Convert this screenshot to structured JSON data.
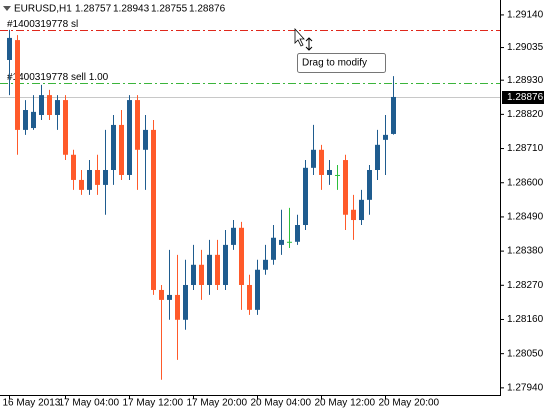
{
  "chart_data": {
    "type": "candlestick",
    "symbol": "EURUSD,H1",
    "categories": [
      "16 May 2013",
      null,
      null,
      null,
      null,
      null,
      null,
      "17 May 04:00",
      null,
      null,
      null,
      null,
      null,
      null,
      null,
      "17 May 12:00",
      null,
      null,
      null,
      null,
      null,
      null,
      null,
      "17 May 20:00",
      null,
      null,
      null,
      null,
      null,
      null,
      null,
      "20 May 04:00",
      null,
      null,
      null,
      null,
      null,
      null,
      null,
      "20 May 12:00",
      null,
      null,
      null,
      null,
      null,
      null,
      null,
      "20 May 20:00",
      null
    ],
    "open": [
      1.28995,
      1.29059,
      1.2877,
      1.28776,
      1.28818,
      1.28882,
      1.28818,
      1.28866,
      1.2869,
      1.28609,
      1.28577,
      1.28641,
      1.28593,
      1.28641,
      1.28786,
      1.28625,
      1.28866,
      1.28706,
      1.2877,
      1.28255,
      1.28223,
      1.28239,
      1.28159,
      1.28271,
      1.28336,
      1.28271,
      1.28368,
      1.28271,
      1.284,
      1.28455,
      1.28271,
      1.28191,
      1.2832,
      1.28352,
      1.284,
      1.2841,
      1.2841,
      1.28464,
      1.28648,
      1.28706,
      1.28625,
      1.28625,
      1.28673,
      1.28513,
      1.2848,
      1.28545,
      1.28641,
      1.28738,
      1.28757
    ],
    "high": [
      1.29092,
      1.29075,
      1.28866,
      1.28882,
      1.28915,
      1.28899,
      1.28882,
      1.28882,
      1.28706,
      1.28641,
      1.28673,
      1.2869,
      1.2877,
      1.28818,
      1.28834,
      1.28882,
      1.28882,
      1.28818,
      1.28802,
      1.28271,
      1.28384,
      1.28368,
      1.28352,
      1.284,
      1.28384,
      1.28416,
      1.28416,
      1.28448,
      1.2848,
      1.28474,
      1.28304,
      1.28352,
      1.284,
      1.28464,
      1.28513,
      1.28519,
      1.28497,
      1.28673,
      1.28786,
      1.28722,
      1.28673,
      1.28657,
      1.2869,
      1.28561,
      1.28577,
      1.28657,
      1.2877,
      1.28818,
      1.28943
    ],
    "low": [
      1.28882,
      1.2869,
      1.28754,
      1.2877,
      1.28802,
      1.28802,
      1.2877,
      1.28673,
      1.28577,
      1.28561,
      1.28561,
      1.28561,
      1.28497,
      1.28593,
      1.28609,
      1.28609,
      1.28577,
      1.28577,
      1.28239,
      1.27966,
      1.28159,
      1.2803,
      1.28127,
      1.28255,
      1.28223,
      1.28239,
      1.28255,
      1.28255,
      1.28384,
      1.28191,
      1.28175,
      1.28175,
      1.28304,
      1.28336,
      1.28368,
      1.2839,
      1.284,
      1.28448,
      1.28625,
      1.28577,
      1.28593,
      1.28577,
      1.28448,
      1.28416,
      1.28464,
      1.28497,
      1.28609,
      1.28625,
      1.28755
    ],
    "close": [
      1.29066,
      1.2877,
      1.28834,
      1.28828,
      1.28882,
      1.28818,
      1.28866,
      1.2869,
      1.28609,
      1.28577,
      1.28641,
      1.28593,
      1.28641,
      1.28786,
      1.28625,
      1.28866,
      1.28706,
      1.2877,
      1.28255,
      1.28223,
      1.28239,
      1.28159,
      1.28271,
      1.28336,
      1.28271,
      1.28368,
      1.28271,
      1.284,
      1.28455,
      1.28271,
      1.28191,
      1.2832,
      1.28352,
      1.28423,
      1.28416,
      1.2841,
      1.28464,
      1.28648,
      1.28706,
      1.28625,
      1.28641,
      1.28625,
      1.28497,
      1.2848,
      1.28545,
      1.28641,
      1.28722,
      1.28754,
      1.28876
    ],
    "up_color": "#1f5c8f",
    "down_color": "#ff5a2a",
    "doji_color": "#2cbf3c",
    "ylim": [
      1.27917,
      1.29188
    ],
    "yticks": [
      {
        "value": 1.2914,
        "label": "1.29140"
      },
      1.29035,
      {
        "value": 1.2893,
        "label": "1.28930"
      },
      {
        "value": 1.2882,
        "label": "1.28820"
      },
      {
        "value": 1.2871,
        "label": "1.28710"
      },
      {
        "value": 1.286,
        "label": "1.28600"
      },
      {
        "value": 1.2849,
        "label": "1.28490"
      },
      {
        "value": 1.2838,
        "label": "1.28380"
      },
      {
        "value": 1.2827,
        "label": "1.28270"
      },
      {
        "value": 1.2816,
        "label": "1.28160"
      },
      {
        "value": 1.2805,
        "label": "1.28050"
      },
      {
        "value": 1.2794,
        "label": "1.27940"
      }
    ],
    "order_lines": [
      {
        "label": "#1400319778 sl",
        "value": 1.29091,
        "color": "#e0281c"
      },
      {
        "label": "#1400319778 sell 1.00",
        "value": 1.28921,
        "color": "#3bb53b"
      }
    ],
    "tooltip": "Drag to modify"
  }
}
